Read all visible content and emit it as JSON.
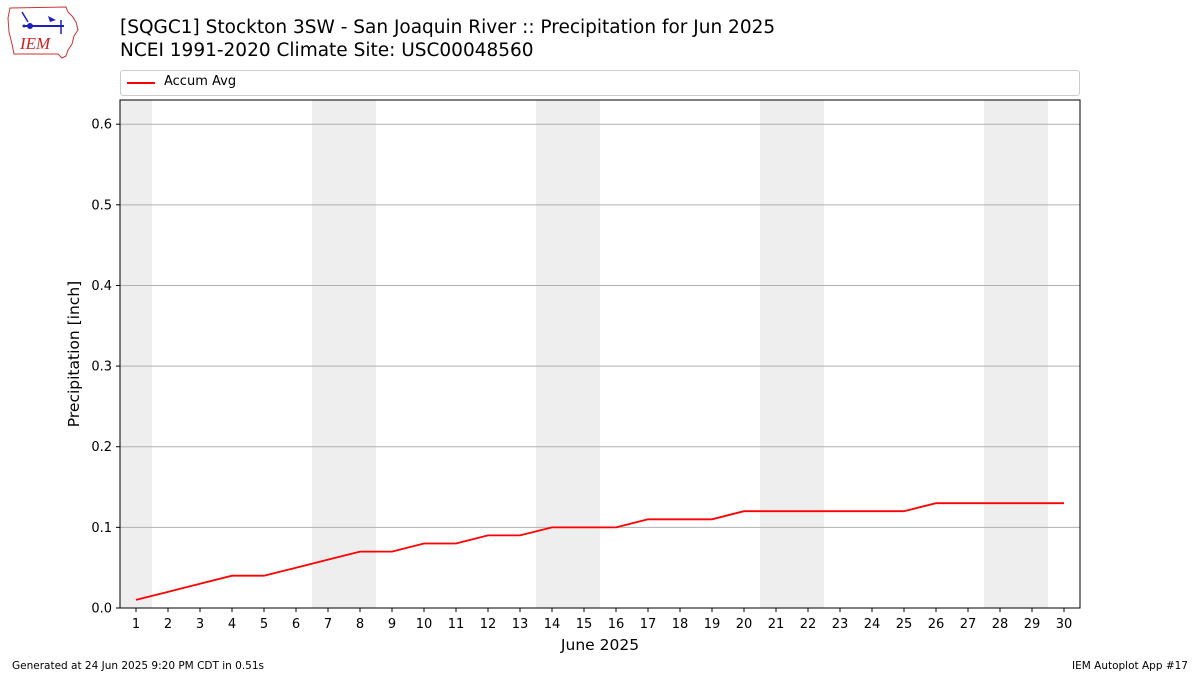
{
  "header": {
    "title_line1": "[SQGC1] Stockton 3SW - San Joaquin River :: Precipitation for Jun 2025",
    "title_line2": "NCEI 1991-2020 Climate Site: USC00048560"
  },
  "logo": {
    "text": "IEM",
    "primary_color": "#1f1fbf",
    "text_color": "#cc2222"
  },
  "footer": {
    "generated": "Generated at 24 Jun 2025 9:20 PM CDT in 0.51s",
    "app": "IEM Autoplot App #17"
  },
  "chart_data": {
    "type": "line",
    "xlabel": "June 2025",
    "ylabel": "Precipitation [inch]",
    "x": [
      1,
      2,
      3,
      4,
      5,
      6,
      7,
      8,
      9,
      10,
      11,
      12,
      13,
      14,
      15,
      16,
      17,
      18,
      19,
      20,
      21,
      22,
      23,
      24,
      25,
      26,
      27,
      28,
      29,
      30
    ],
    "xlim": [
      0.5,
      30.5
    ],
    "ylim": [
      0,
      0.63
    ],
    "yticks": [
      0.0,
      0.1,
      0.2,
      0.3,
      0.4,
      0.5,
      0.6
    ],
    "ytick_labels": [
      "0.0",
      "0.1",
      "0.2",
      "0.3",
      "0.4",
      "0.5",
      "0.6"
    ],
    "grid": "horizontal",
    "legend_position": "top",
    "weekend_shading": [
      [
        0.5,
        1.5
      ],
      [
        6.5,
        8.5
      ],
      [
        13.5,
        15.5
      ],
      [
        20.5,
        22.5
      ],
      [
        27.5,
        29.5
      ]
    ],
    "weekend_color": "#eeeeee",
    "series": [
      {
        "name": "Accum Avg",
        "color": "#ff0000",
        "values": [
          0.01,
          0.02,
          0.03,
          0.04,
          0.04,
          0.05,
          0.06,
          0.07,
          0.07,
          0.08,
          0.08,
          0.09,
          0.09,
          0.1,
          0.1,
          0.1,
          0.11,
          0.11,
          0.11,
          0.12,
          0.12,
          0.12,
          0.12,
          0.12,
          0.12,
          0.13,
          0.13,
          0.13,
          0.13,
          0.13
        ]
      }
    ]
  }
}
